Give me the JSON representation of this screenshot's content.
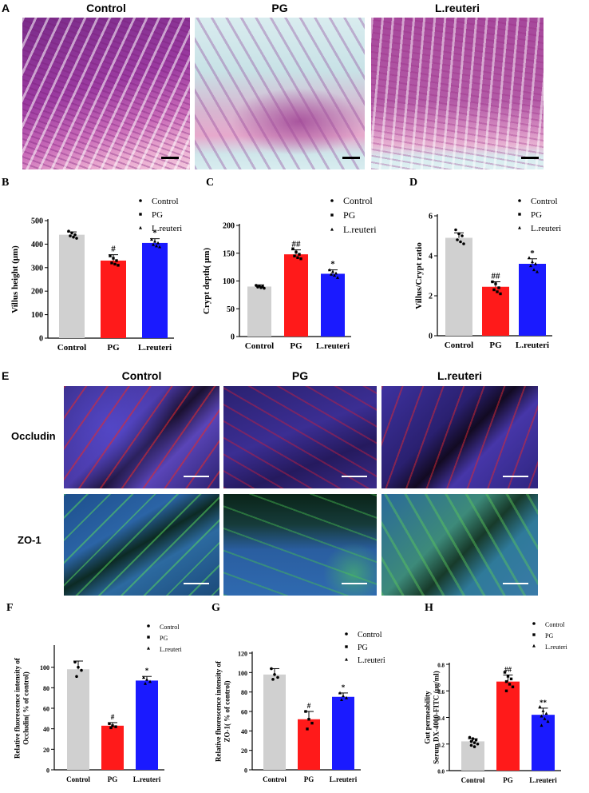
{
  "section_a": {
    "letter": "A",
    "titles": [
      "Control",
      "PG",
      "L.reuteri"
    ]
  },
  "section_e": {
    "letter": "E",
    "titles": [
      "Control",
      "PG",
      "L.reuteri"
    ],
    "rows": [
      "Occludin",
      "ZO-1"
    ]
  },
  "colors": {
    "control": "#d0d0d0",
    "pg": "#ff1a1a",
    "lreuteri": "#1a1aff"
  },
  "chart_data": [
    {
      "id": "B",
      "letter": "B",
      "type": "bar",
      "categories": [
        "Control",
        "PG",
        "L.reuteri"
      ],
      "values": [
        440,
        330,
        405
      ],
      "errors": [
        12,
        25,
        18
      ],
      "points": [
        [
          455,
          448,
          440,
          435,
          430,
          425
        ],
        [
          350,
          340,
          330,
          320,
          315,
          310
        ],
        [
          420,
          412,
          405,
          398,
          392,
          388
        ]
      ],
      "significance": [
        "",
        "#",
        "*"
      ],
      "ylabel": "Villus height (μm)",
      "ylim": [
        0,
        500
      ],
      "yticks": [
        0,
        100,
        200,
        300,
        400,
        500
      ],
      "legend": [
        "Control",
        "PG",
        "L.reuteri"
      ],
      "legend_position": "top-right"
    },
    {
      "id": "C",
      "letter": "C",
      "type": "bar",
      "categories": [
        "Control",
        "PG",
        "L.reuteri"
      ],
      "values": [
        90,
        148,
        113
      ],
      "errors": [
        3,
        8,
        7
      ],
      "points": [
        [
          92,
          91,
          90,
          89,
          88,
          87
        ],
        [
          158,
          152,
          148,
          145,
          142,
          140
        ],
        [
          120,
          117,
          114,
          112,
          110,
          106
        ]
      ],
      "significance": [
        "",
        "##",
        "*"
      ],
      "ylabel": "Crypt depth( μm)",
      "ylim": [
        0,
        200
      ],
      "yticks": [
        0,
        50,
        100,
        150,
        200
      ],
      "legend": [
        "Control",
        "PG",
        "L.reuteri"
      ],
      "legend_position": "top-right"
    },
    {
      "id": "D",
      "letter": "D",
      "type": "bar",
      "categories": [
        "Control",
        "PG",
        "L.reuteri"
      ],
      "values": [
        4.9,
        2.45,
        3.6
      ],
      "errors": [
        0.25,
        0.25,
        0.25
      ],
      "points": [
        [
          5.3,
          5.1,
          5.0,
          4.8,
          4.7,
          4.6
        ],
        [
          2.7,
          2.6,
          2.4,
          2.3,
          2.2,
          2.1
        ],
        [
          3.9,
          3.7,
          3.6,
          3.5,
          3.3,
          3.2
        ]
      ],
      "significance": [
        "",
        "##",
        "*"
      ],
      "ylabel": "Villus/Crypt ratio",
      "ylim": [
        0,
        6
      ],
      "yticks": [
        0,
        2,
        4,
        6
      ],
      "legend": [
        "Control",
        "PG",
        "L.reuteri"
      ],
      "legend_position": "top-right"
    },
    {
      "id": "F",
      "letter": "F",
      "type": "bar",
      "categories": [
        "Control",
        "PG",
        "L.reuteri"
      ],
      "values": [
        98,
        43,
        87
      ],
      "errors": [
        8,
        3,
        4
      ],
      "points": [
        [
          105,
          100,
          97,
          91
        ],
        [
          45,
          43,
          42,
          41
        ],
        [
          90,
          88,
          86,
          84
        ]
      ],
      "significance": [
        "",
        "#",
        "*"
      ],
      "ylabel": "Relative fluorescence intensity of\nOccludin( % of control)",
      "ylim": [
        0,
        120
      ],
      "yticks": [
        0,
        20,
        40,
        60,
        80,
        100
      ],
      "legend": [
        "Control",
        "PG",
        "L.reuteri"
      ],
      "legend_position": "top-right"
    },
    {
      "id": "G",
      "letter": "G",
      "type": "bar",
      "categories": [
        "Control",
        "PG",
        "L.reuteri"
      ],
      "values": [
        98,
        52,
        75
      ],
      "errors": [
        6,
        8,
        4
      ],
      "points": [
        [
          104,
          98,
          95,
          93
        ],
        [
          60,
          52,
          48,
          42
        ],
        [
          79,
          76,
          74,
          72
        ]
      ],
      "significance": [
        "",
        "#",
        "*"
      ],
      "ylabel": "Relative fluorescence intensity of\nZO-1( % of control)",
      "ylim": [
        0,
        120
      ],
      "yticks": [
        0,
        20,
        40,
        60,
        80,
        100,
        120
      ],
      "legend": [
        "Control",
        "PG",
        "L.reuteri"
      ],
      "legend_position": "top-right"
    },
    {
      "id": "H",
      "letter": "H",
      "type": "bar",
      "categories": [
        "Control",
        "PG",
        "L.reuteri"
      ],
      "values": [
        0.22,
        0.67,
        0.42
      ],
      "errors": [
        0.02,
        0.05,
        0.05
      ],
      "points": [
        [
          0.25,
          0.24,
          0.23,
          0.22,
          0.21,
          0.2,
          0.19,
          0.18
        ],
        [
          0.74,
          0.71,
          0.69,
          0.67,
          0.65,
          0.63,
          0.6
        ],
        [
          0.48,
          0.45,
          0.43,
          0.41,
          0.39,
          0.37,
          0.34
        ]
      ],
      "significance": [
        "",
        "##",
        "**"
      ],
      "ylabel": "Gut permeability\nSerum DX-4000-FITC (μg/ml)",
      "ylim": [
        0,
        0.8
      ],
      "yticks": [
        0.0,
        0.2,
        0.4,
        0.6,
        0.8
      ],
      "legend": [
        "Control",
        "PG",
        "L.reuteri"
      ],
      "legend_position": "top-right"
    }
  ]
}
